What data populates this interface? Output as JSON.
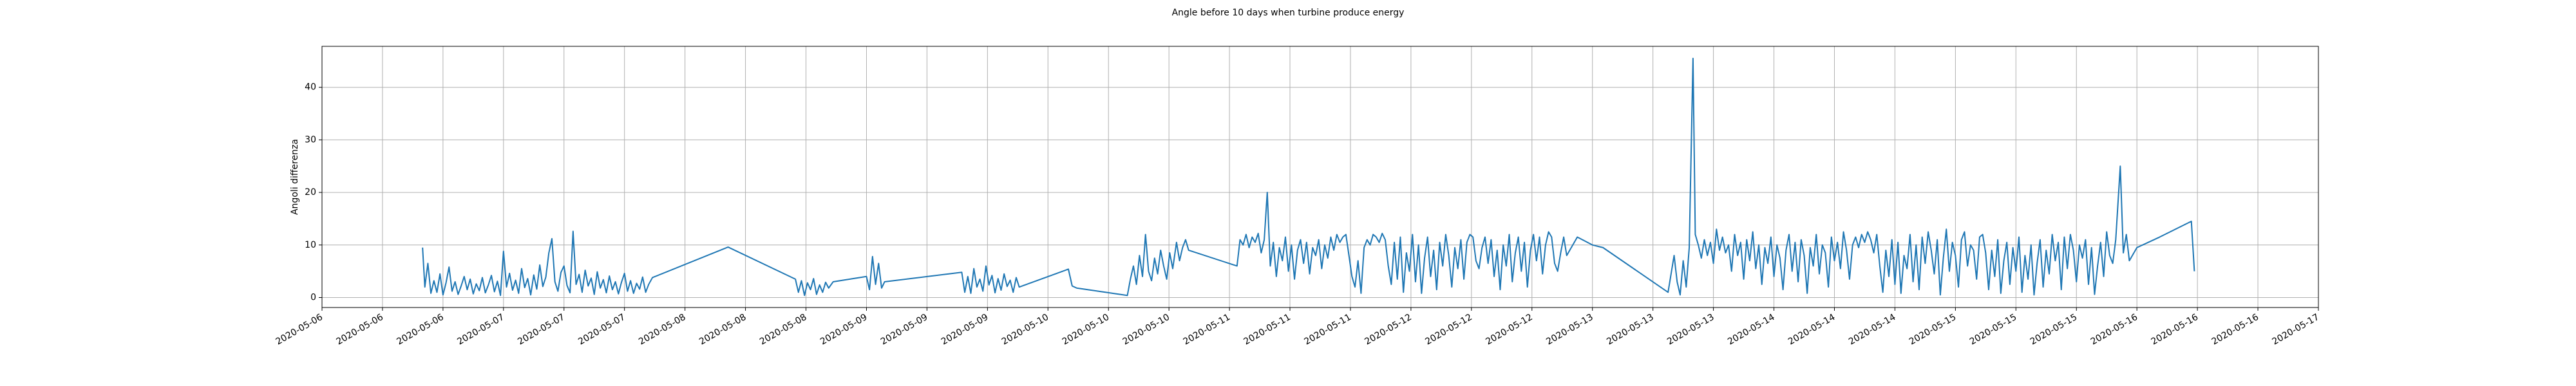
{
  "chart_data": {
    "type": "line",
    "title": "Angle before 10 days when turbine produce energy",
    "y_label": "Angoli differenza",
    "color": "#1f77b4",
    "grid": true,
    "xlim": [
      0,
      264
    ],
    "ylim": [
      -1.9,
      47.8
    ],
    "yticks": [
      0,
      10,
      20,
      30,
      40
    ],
    "xticks": [
      {
        "value": 0,
        "label": "2020-05-06"
      },
      {
        "value": 8,
        "label": "2020-05-06"
      },
      {
        "value": 16,
        "label": "2020-05-06"
      },
      {
        "value": 24,
        "label": "2020-05-07"
      },
      {
        "value": 32,
        "label": "2020-05-07"
      },
      {
        "value": 40,
        "label": "2020-05-07"
      },
      {
        "value": 48,
        "label": "2020-05-08"
      },
      {
        "value": 56,
        "label": "2020-05-08"
      },
      {
        "value": 64,
        "label": "2020-05-08"
      },
      {
        "value": 72,
        "label": "2020-05-09"
      },
      {
        "value": 80,
        "label": "2020-05-09"
      },
      {
        "value": 88,
        "label": "2020-05-09"
      },
      {
        "value": 96,
        "label": "2020-05-10"
      },
      {
        "value": 104,
        "label": "2020-05-10"
      },
      {
        "value": 112,
        "label": "2020-05-10"
      },
      {
        "value": 120,
        "label": "2020-05-11"
      },
      {
        "value": 128,
        "label": "2020-05-11"
      },
      {
        "value": 136,
        "label": "2020-05-11"
      },
      {
        "value": 144,
        "label": "2020-05-12"
      },
      {
        "value": 152,
        "label": "2020-05-12"
      },
      {
        "value": 160,
        "label": "2020-05-12"
      },
      {
        "value": 168,
        "label": "2020-05-13"
      },
      {
        "value": 176,
        "label": "2020-05-13"
      },
      {
        "value": 184,
        "label": "2020-05-13"
      },
      {
        "value": 192,
        "label": "2020-05-14"
      },
      {
        "value": 200,
        "label": "2020-05-14"
      },
      {
        "value": 208,
        "label": "2020-05-14"
      },
      {
        "value": 216,
        "label": "2020-05-15"
      },
      {
        "value": 224,
        "label": "2020-05-15"
      },
      {
        "value": 232,
        "label": "2020-05-15"
      },
      {
        "value": 240,
        "label": "2020-05-16"
      },
      {
        "value": 248,
        "label": "2020-05-16"
      },
      {
        "value": 256,
        "label": "2020-05-16"
      },
      {
        "value": 264,
        "label": "2020-05-17"
      }
    ],
    "x": [
      13.3,
      13.6,
      14.0,
      14.4,
      14.8,
      15.2,
      15.6,
      16.0,
      16.4,
      16.8,
      17.2,
      17.6,
      18.0,
      18.4,
      18.8,
      19.2,
      19.6,
      20.0,
      20.4,
      20.8,
      21.2,
      21.6,
      22.0,
      22.4,
      22.8,
      23.2,
      23.6,
      24.0,
      24.4,
      24.8,
      25.2,
      25.6,
      26.0,
      26.4,
      26.8,
      27.2,
      27.6,
      28.0,
      28.4,
      28.8,
      29.2,
      29.6,
      30.0,
      30.4,
      30.8,
      31.2,
      31.6,
      32.0,
      32.4,
      32.8,
      33.2,
      33.6,
      34.0,
      34.4,
      34.8,
      35.2,
      35.6,
      36.0,
      36.4,
      36.8,
      37.2,
      37.6,
      38.0,
      38.4,
      38.8,
      39.2,
      39.6,
      40.0,
      40.4,
      40.8,
      41.2,
      41.6,
      42.0,
      42.4,
      42.8,
      43.2,
      43.7,
      53.7,
      62.6,
      63.0,
      63.4,
      63.8,
      64.2,
      64.6,
      65.0,
      65.4,
      65.8,
      66.2,
      66.6,
      67.0,
      67.6,
      72.0,
      72.4,
      72.8,
      73.2,
      73.6,
      74.0,
      74.4,
      84.6,
      85.0,
      85.4,
      85.8,
      86.2,
      86.6,
      87.0,
      87.4,
      87.8,
      88.2,
      88.6,
      89.0,
      89.4,
      89.8,
      90.2,
      90.6,
      91.0,
      91.4,
      91.8,
      92.2,
      98.7,
      99.2,
      99.8,
      106.5,
      106.9,
      107.3,
      107.7,
      108.1,
      108.5,
      108.9,
      109.3,
      109.7,
      110.1,
      110.5,
      110.9,
      111.3,
      111.7,
      112.1,
      112.5,
      113.0,
      113.4,
      113.8,
      114.2,
      114.6,
      121.0,
      121.4,
      121.8,
      122.2,
      122.6,
      123.0,
      123.4,
      123.8,
      124.2,
      124.6,
      125.0,
      125.4,
      125.8,
      126.2,
      126.6,
      127.0,
      127.4,
      127.8,
      128.2,
      128.6,
      129.0,
      129.4,
      129.8,
      130.2,
      130.6,
      131.0,
      131.4,
      131.8,
      132.2,
      132.6,
      133.0,
      133.4,
      133.8,
      134.2,
      134.6,
      135.0,
      135.4,
      135.8,
      136.2,
      136.6,
      137.0,
      137.4,
      137.8,
      138.2,
      138.6,
      139.0,
      139.4,
      139.8,
      140.2,
      140.6,
      141.0,
      141.4,
      141.8,
      142.2,
      142.6,
      143.0,
      143.4,
      143.8,
      144.2,
      144.6,
      145.0,
      145.4,
      145.8,
      146.2,
      146.6,
      147.0,
      147.4,
      147.8,
      148.2,
      148.6,
      149.0,
      149.4,
      149.8,
      150.2,
      150.6,
      151.0,
      151.4,
      151.8,
      152.2,
      152.6,
      153.0,
      153.4,
      153.8,
      154.2,
      154.6,
      155.0,
      155.4,
      155.8,
      156.2,
      156.6,
      157.0,
      157.4,
      157.8,
      158.2,
      158.6,
      159.0,
      159.4,
      159.8,
      160.2,
      160.6,
      161.0,
      161.4,
      161.8,
      162.2,
      162.6,
      163.0,
      163.4,
      163.8,
      164.2,
      164.6,
      165.2,
      166.0,
      168.0,
      169.4,
      178.0,
      178.4,
      178.8,
      179.2,
      179.6,
      180.0,
      180.4,
      180.8,
      181.3,
      181.6,
      182.0,
      182.4,
      182.8,
      183.2,
      183.6,
      184.0,
      184.4,
      184.8,
      185.2,
      185.6,
      186.0,
      186.4,
      186.8,
      187.2,
      187.6,
      188.0,
      188.4,
      188.8,
      189.2,
      189.6,
      190.0,
      190.4,
      190.8,
      191.2,
      191.6,
      192.0,
      192.4,
      192.8,
      193.2,
      193.6,
      194.0,
      194.4,
      194.8,
      195.2,
      195.6,
      196.0,
      196.4,
      196.8,
      197.2,
      197.6,
      198.0,
      198.4,
      198.8,
      199.2,
      199.6,
      200.0,
      200.4,
      200.8,
      201.2,
      201.6,
      202.0,
      202.4,
      202.8,
      203.2,
      203.6,
      204.0,
      204.4,
      204.8,
      205.2,
      205.6,
      206.0,
      206.4,
      206.8,
      207.2,
      207.6,
      208.0,
      208.4,
      208.8,
      209.2,
      209.6,
      210.0,
      210.4,
      210.8,
      211.2,
      211.6,
      212.0,
      212.4,
      212.8,
      213.2,
      213.6,
      214.0,
      214.4,
      214.8,
      215.2,
      215.6,
      216.0,
      216.4,
      216.8,
      217.2,
      217.6,
      218.0,
      218.4,
      218.8,
      219.2,
      219.6,
      220.0,
      220.4,
      220.8,
      221.2,
      221.6,
      222.0,
      222.4,
      222.8,
      223.2,
      223.6,
      224.0,
      224.4,
      224.8,
      225.2,
      225.6,
      226.0,
      226.4,
      226.8,
      227.2,
      227.6,
      228.0,
      228.4,
      228.8,
      229.2,
      229.6,
      230.0,
      230.4,
      230.8,
      231.2,
      231.6,
      232.0,
      232.4,
      232.8,
      233.2,
      233.6,
      234.0,
      234.4,
      234.8,
      235.2,
      235.6,
      236.0,
      236.4,
      236.8,
      237.2,
      237.8,
      238.2,
      238.6,
      239.0,
      240.0,
      243.0,
      247.2,
      247.6
    ],
    "values": [
      9.5,
      2.0,
      6.5,
      0.8,
      3.2,
      1.0,
      4.5,
      0.5,
      2.8,
      5.8,
      1.2,
      3.0,
      0.6,
      2.2,
      4.0,
      1.5,
      3.5,
      0.7,
      2.6,
      1.3,
      3.8,
      0.9,
      2.4,
      4.2,
      1.1,
      3.1,
      0.4,
      8.8,
      2.0,
      4.6,
      1.4,
      3.3,
      0.8,
      5.5,
      1.9,
      3.6,
      0.5,
      4.3,
      1.6,
      6.2,
      2.1,
      3.9,
      8.5,
      11.2,
      3.0,
      1.2,
      4.8,
      6.0,
      2.3,
      0.9,
      12.6,
      2.5,
      4.4,
      1.0,
      5.2,
      2.2,
      3.7,
      0.6,
      4.9,
      1.8,
      3.4,
      0.9,
      4.1,
      1.5,
      3.0,
      0.7,
      2.9,
      4.6,
      1.2,
      3.2,
      0.8,
      2.7,
      1.6,
      3.9,
      1.0,
      2.5,
      3.8,
      9.6,
      3.5,
      1.0,
      3.2,
      0.4,
      2.8,
      1.5,
      3.6,
      0.6,
      2.4,
      1.0,
      2.9,
      1.8,
      3.0,
      4.0,
      1.5,
      7.8,
      2.5,
      6.5,
      1.8,
      3.0,
      4.8,
      1.0,
      4.0,
      0.8,
      5.5,
      2.0,
      3.5,
      1.2,
      6.0,
      2.4,
      4.2,
      0.9,
      3.6,
      1.4,
      4.5,
      2.1,
      3.3,
      1.0,
      3.8,
      2.0,
      5.4,
      2.2,
      1.8,
      0.4,
      3.5,
      6.0,
      2.5,
      8.0,
      4.0,
      12.0,
      5.0,
      3.2,
      7.5,
      4.5,
      9.0,
      6.0,
      3.5,
      8.5,
      5.5,
      10.5,
      7.0,
      9.5,
      11.0,
      9.0,
      6.0,
      11.0,
      10.0,
      12.0,
      9.5,
      11.5,
      10.5,
      12.2,
      8.5,
      11.0,
      20.0,
      6.0,
      10.5,
      4.0,
      9.5,
      7.0,
      11.5,
      5.0,
      10.0,
      3.5,
      9.0,
      11.0,
      6.5,
      10.5,
      4.5,
      9.5,
      8.0,
      11.0,
      5.5,
      10.0,
      7.5,
      11.5,
      9.0,
      12.0,
      10.5,
      11.5,
      12.0,
      8.0,
      4.0,
      2.0,
      7.0,
      0.8,
      9.5,
      11.0,
      10.0,
      12.0,
      11.5,
      10.5,
      12.2,
      11.0,
      6.0,
      2.5,
      10.5,
      3.5,
      11.5,
      1.0,
      8.5,
      5.0,
      12.0,
      3.0,
      10.0,
      0.8,
      7.5,
      11.5,
      4.0,
      9.0,
      1.5,
      10.5,
      6.0,
      12.0,
      8.0,
      2.0,
      9.5,
      5.5,
      11.0,
      3.5,
      10.5,
      12.0,
      11.5,
      7.0,
      5.5,
      9.5,
      11.5,
      6.5,
      11.0,
      4.0,
      9.0,
      1.5,
      10.0,
      6.0,
      12.0,
      3.0,
      8.5,
      11.5,
      5.0,
      10.5,
      2.0,
      9.0,
      12.0,
      7.0,
      11.5,
      4.5,
      10.0,
      12.5,
      11.5,
      6.5,
      5.0,
      8.5,
      11.5,
      8.0,
      9.5,
      11.5,
      10.0,
      9.5,
      1.0,
      4.5,
      8.0,
      3.0,
      0.5,
      7.0,
      2.0,
      9.5,
      45.5,
      12.0,
      10.0,
      7.5,
      11.0,
      8.0,
      10.5,
      6.5,
      13.0,
      9.0,
      11.5,
      8.5,
      10.0,
      5.0,
      12.0,
      8.0,
      10.5,
      3.5,
      11.0,
      7.0,
      12.5,
      5.5,
      10.0,
      2.5,
      9.5,
      6.5,
      11.5,
      4.0,
      10.0,
      7.5,
      1.5,
      9.0,
      12.0,
      5.0,
      10.5,
      3.0,
      11.0,
      8.0,
      0.8,
      9.5,
      6.0,
      12.0,
      4.5,
      10.0,
      8.5,
      2.0,
      11.5,
      7.0,
      10.5,
      5.5,
      12.5,
      9.0,
      3.5,
      10.0,
      11.5,
      9.5,
      12.0,
      10.5,
      12.5,
      11.0,
      8.5,
      12.0,
      6.0,
      1.0,
      9.0,
      4.0,
      11.0,
      2.5,
      10.5,
      0.8,
      8.0,
      5.5,
      12.0,
      3.0,
      10.0,
      1.5,
      11.5,
      6.5,
      12.5,
      9.0,
      4.5,
      11.0,
      0.5,
      7.5,
      13.0,
      5.0,
      10.5,
      8.0,
      2.0,
      11.0,
      12.5,
      6.0,
      10.0,
      9.0,
      3.5,
      11.5,
      12.0,
      8.5,
      1.5,
      9.0,
      4.0,
      11.0,
      0.8,
      7.0,
      10.5,
      2.5,
      9.5,
      5.0,
      11.5,
      1.0,
      8.0,
      3.5,
      10.0,
      0.5,
      6.5,
      11.0,
      2.0,
      9.0,
      4.5,
      12.0,
      7.0,
      10.5,
      1.5,
      11.5,
      5.5,
      12.0,
      9.0,
      3.0,
      10.0,
      7.5,
      11.0,
      2.5,
      9.5,
      0.6,
      6.0,
      10.5,
      4.0,
      12.5,
      8.0,
      6.5,
      11.0,
      25.0,
      8.5,
      12.0,
      7.0,
      9.5,
      11.5,
      14.5,
      5.0
    ]
  }
}
